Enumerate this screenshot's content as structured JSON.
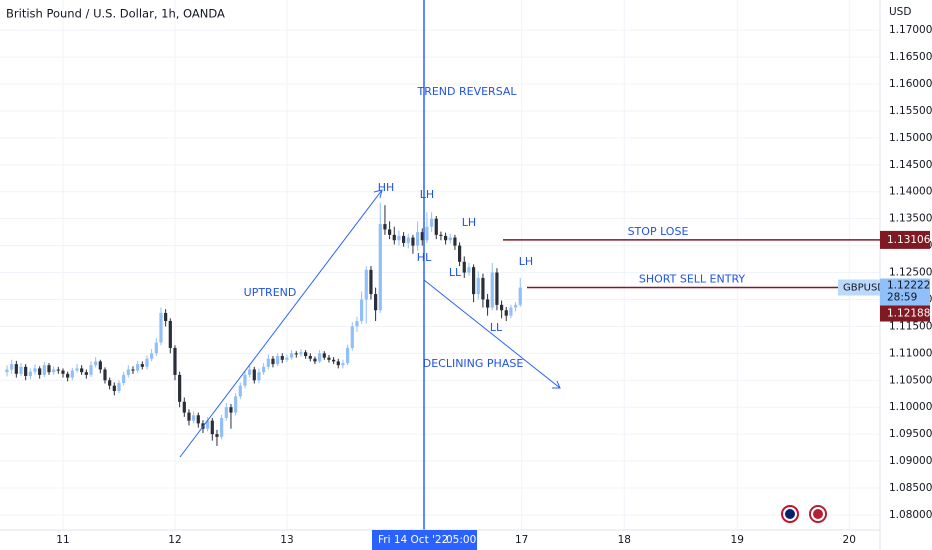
{
  "chart_data": {
    "type": "candlestick",
    "title": "British Pound / U.S. Dollar, 1h, OANDA",
    "currency": "USD",
    "symbol": "GBPUSD",
    "countdown": "28:59",
    "crosshair_date": "Fri 14 Oct '22",
    "crosshair_time": "05:00",
    "second_price": 1.12188,
    "stop_loss": {
      "label": "STOP LOSE",
      "value": 1.13106
    },
    "entry": {
      "label": "SHORT SELL ENTRY",
      "value": 1.12222
    },
    "annotations": [
      "HH",
      "LH",
      "LH",
      "HL",
      "LL",
      "LH",
      "LL",
      "UPTREND",
      "TREND REVERSAL",
      "DECLINING PHASE"
    ],
    "up_color": "#90bff9",
    "down_color": "#2a2e39",
    "grid": true,
    "xlim": [
      -13.5,
      175.1
    ],
    "ylim": [
      1.0772,
      1.1756
    ],
    "xticks": [
      {
        "value": 0,
        "label": "11"
      },
      {
        "value": 24,
        "label": "12"
      },
      {
        "value": 48,
        "label": "13"
      },
      {
        "value": 98.3,
        "label": "17"
      },
      {
        "value": 120.3,
        "label": "18"
      },
      {
        "value": 144.5,
        "label": "19"
      },
      {
        "value": 168.5,
        "label": "20"
      }
    ],
    "yticks": [
      {
        "value": 1.08,
        "label": "1.08000"
      },
      {
        "value": 1.085,
        "label": "1.08500"
      },
      {
        "value": 1.09,
        "label": "1.09000"
      },
      {
        "value": 1.095,
        "label": "1.09500"
      },
      {
        "value": 1.1,
        "label": "1.10000"
      },
      {
        "value": 1.105,
        "label": "1.10500"
      },
      {
        "value": 1.11,
        "label": "1.11000"
      },
      {
        "value": 1.115,
        "label": "1.11500"
      },
      {
        "value": 1.12,
        "label": "1.12000"
      },
      {
        "value": 1.125,
        "label": "1.12500"
      },
      {
        "value": 1.13,
        "label": "1.13000"
      },
      {
        "value": 1.135,
        "label": "1.13500"
      },
      {
        "value": 1.14,
        "label": "1.14000"
      },
      {
        "value": 1.145,
        "label": "1.14500"
      },
      {
        "value": 1.15,
        "label": "1.15000"
      },
      {
        "value": 1.155,
        "label": "1.15500"
      },
      {
        "value": 1.16,
        "label": "1.16000"
      },
      {
        "value": 1.165,
        "label": "1.16500"
      },
      {
        "value": 1.17,
        "label": "1.17000"
      }
    ],
    "x": [
      -12,
      -11,
      -10,
      -9,
      -8,
      -7,
      -6,
      -5,
      -4,
      -3,
      -2,
      -1,
      0,
      1,
      2,
      3,
      4,
      5,
      6,
      7,
      8,
      9,
      10,
      11,
      12,
      13,
      14,
      15,
      16,
      17,
      18,
      19,
      20,
      21,
      22,
      23,
      24,
      25,
      26,
      27,
      28,
      29,
      30,
      31,
      32,
      33,
      34,
      35,
      36,
      37,
      38,
      39,
      40,
      41,
      42,
      43,
      44,
      45,
      46,
      47,
      48,
      49,
      50,
      51,
      52,
      53,
      54,
      55,
      56,
      57,
      58,
      59,
      60,
      61,
      62,
      63,
      64,
      65,
      66,
      67,
      68,
      69,
      70,
      71,
      72,
      73,
      74,
      75,
      76,
      77,
      78,
      79,
      80,
      81,
      82,
      83,
      84,
      85,
      86,
      87,
      88,
      89,
      90,
      91,
      92,
      93,
      94,
      95,
      96,
      97,
      98
    ],
    "open": [
      1.1065,
      1.107,
      1.108,
      1.1062,
      1.1075,
      1.1058,
      1.1066,
      1.1072,
      1.106,
      1.1078,
      1.1065,
      1.107,
      1.1068,
      1.1062,
      1.1055,
      1.1068,
      1.1072,
      1.1065,
      1.106,
      1.1078,
      1.1085,
      1.107,
      1.105,
      1.104,
      1.103,
      1.1045,
      1.106,
      1.107,
      1.1068,
      1.108,
      1.1075,
      1.109,
      1.11,
      1.112,
      1.1175,
      1.116,
      1.111,
      1.106,
      1.101,
      1.099,
      1.0975,
      1.0985,
      1.097,
      1.096,
      1.0975,
      1.095,
      1.0945,
      1.098,
      1.1,
      1.099,
      1.102,
      1.104,
      1.106,
      1.107,
      1.105,
      1.1065,
      1.1075,
      1.109,
      1.108,
      1.1095,
      1.1088,
      1.1092,
      1.11,
      1.1098,
      1.1102,
      1.1095,
      1.109,
      1.1085,
      1.11,
      1.1092,
      1.1088,
      1.1085,
      1.1078,
      1.1082,
      1.111,
      1.115,
      1.116,
      1.12,
      1.1255,
      1.121,
      1.118,
      1.134,
      1.133,
      1.132,
      1.131,
      1.1318,
      1.1305,
      1.1315,
      1.13,
      1.1325,
      1.131,
      1.1335,
      1.135,
      1.132,
      1.1318,
      1.131,
      1.1315,
      1.13,
      1.127,
      1.125,
      1.126,
      1.121,
      1.124,
      1.12,
      1.1185,
      1.125,
      1.119,
      1.118,
      1.117,
      1.1185,
      1.119
    ],
    "high": [
      1.1078,
      1.1088,
      1.1086,
      1.1082,
      1.108,
      1.1072,
      1.1079,
      1.1076,
      1.1084,
      1.1082,
      1.1076,
      1.1075,
      1.1072,
      1.1066,
      1.1073,
      1.108,
      1.1078,
      1.107,
      1.1085,
      1.1093,
      1.1088,
      1.1074,
      1.1055,
      1.1046,
      1.105,
      1.1066,
      1.1078,
      1.1076,
      1.1086,
      1.1085,
      1.1096,
      1.1108,
      1.1128,
      1.1185,
      1.1182,
      1.1165,
      1.1115,
      1.1066,
      1.1018,
      1.0996,
      1.0992,
      1.099,
      1.0976,
      1.0982,
      1.098,
      1.0958,
      1.0986,
      1.1008,
      1.1006,
      1.1026,
      1.1046,
      1.1066,
      1.108,
      1.1075,
      1.1072,
      1.1082,
      1.1098,
      1.1095,
      1.11,
      1.11,
      1.1098,
      1.1106,
      1.1104,
      1.1108,
      1.1106,
      1.11,
      1.1094,
      1.1106,
      1.1104,
      1.1097,
      1.1093,
      1.109,
      1.1088,
      1.1116,
      1.1158,
      1.1168,
      1.1215,
      1.1262,
      1.1262,
      1.1222,
      1.138,
      1.1375,
      1.1345,
      1.1335,
      1.1328,
      1.1325,
      1.1322,
      1.132,
      1.1345,
      1.1332,
      1.1362,
      1.1362,
      1.1355,
      1.1326,
      1.1324,
      1.1322,
      1.132,
      1.1306,
      1.128,
      1.1268,
      1.1265,
      1.1252,
      1.1248,
      1.121,
      1.1268,
      1.1258,
      1.1198,
      1.1186,
      1.119,
      1.1195,
      1.124
    ],
    "low": [
      1.1057,
      1.1062,
      1.1055,
      1.1058,
      1.105,
      1.1052,
      1.1061,
      1.1053,
      1.1056,
      1.106,
      1.106,
      1.1062,
      1.1055,
      1.1048,
      1.105,
      1.1064,
      1.106,
      1.1053,
      1.1056,
      1.1074,
      1.1063,
      1.1044,
      1.1033,
      1.1022,
      1.1026,
      1.104,
      1.1055,
      1.1062,
      1.1064,
      1.107,
      1.107,
      1.1085,
      1.1095,
      1.1115,
      1.115,
      1.11,
      1.105,
      1.1,
      1.0982,
      1.0966,
      1.097,
      1.0962,
      1.0952,
      1.0955,
      1.0938,
      1.0928,
      1.094,
      1.0975,
      1.096,
      1.0985,
      1.1015,
      1.1035,
      1.1055,
      1.1044,
      1.1045,
      1.106,
      1.107,
      1.1074,
      1.1076,
      1.1082,
      1.1084,
      1.1088,
      1.1092,
      1.1094,
      1.109,
      1.1085,
      1.108,
      1.1082,
      1.1088,
      1.1083,
      1.108,
      1.1072,
      1.1072,
      1.1078,
      1.1105,
      1.114,
      1.1155,
      1.1155,
      1.12,
      1.116,
      1.1175,
      1.132,
      1.1312,
      1.1302,
      1.13,
      1.1298,
      1.1295,
      1.1285,
      1.129,
      1.13,
      1.1305,
      1.1325,
      1.1312,
      1.131,
      1.1302,
      1.1304,
      1.1292,
      1.1262,
      1.124,
      1.1244,
      1.1195,
      1.12,
      1.1185,
      1.117,
      1.118,
      1.118,
      1.1165,
      1.116,
      1.1165,
      1.1178,
      1.1186
    ],
    "close": [
      1.107,
      1.108,
      1.1062,
      1.1075,
      1.1058,
      1.1066,
      1.1072,
      1.106,
      1.1078,
      1.1065,
      1.107,
      1.1068,
      1.1062,
      1.1055,
      1.1068,
      1.1072,
      1.1065,
      1.106,
      1.1078,
      1.1085,
      1.107,
      1.105,
      1.104,
      1.103,
      1.1045,
      1.106,
      1.107,
      1.1068,
      1.108,
      1.1075,
      1.109,
      1.11,
      1.112,
      1.1175,
      1.116,
      1.111,
      1.106,
      1.101,
      1.099,
      1.0975,
      1.0985,
      1.097,
      1.096,
      1.0975,
      1.095,
      1.0945,
      1.098,
      1.1,
      1.099,
      1.102,
      1.104,
      1.106,
      1.107,
      1.105,
      1.1065,
      1.1075,
      1.109,
      1.108,
      1.1095,
      1.1088,
      1.1092,
      1.11,
      1.1098,
      1.1102,
      1.1095,
      1.109,
      1.1085,
      1.11,
      1.1092,
      1.1088,
      1.1085,
      1.1078,
      1.1082,
      1.111,
      1.115,
      1.116,
      1.12,
      1.1255,
      1.121,
      1.118,
      1.134,
      1.133,
      1.132,
      1.131,
      1.1318,
      1.1305,
      1.1315,
      1.13,
      1.1325,
      1.131,
      1.1335,
      1.135,
      1.132,
      1.1318,
      1.131,
      1.1315,
      1.13,
      1.127,
      1.125,
      1.126,
      1.121,
      1.124,
      1.12,
      1.1185,
      1.125,
      1.119,
      1.118,
      1.117,
      1.1185,
      1.119,
      1.1222
    ]
  }
}
